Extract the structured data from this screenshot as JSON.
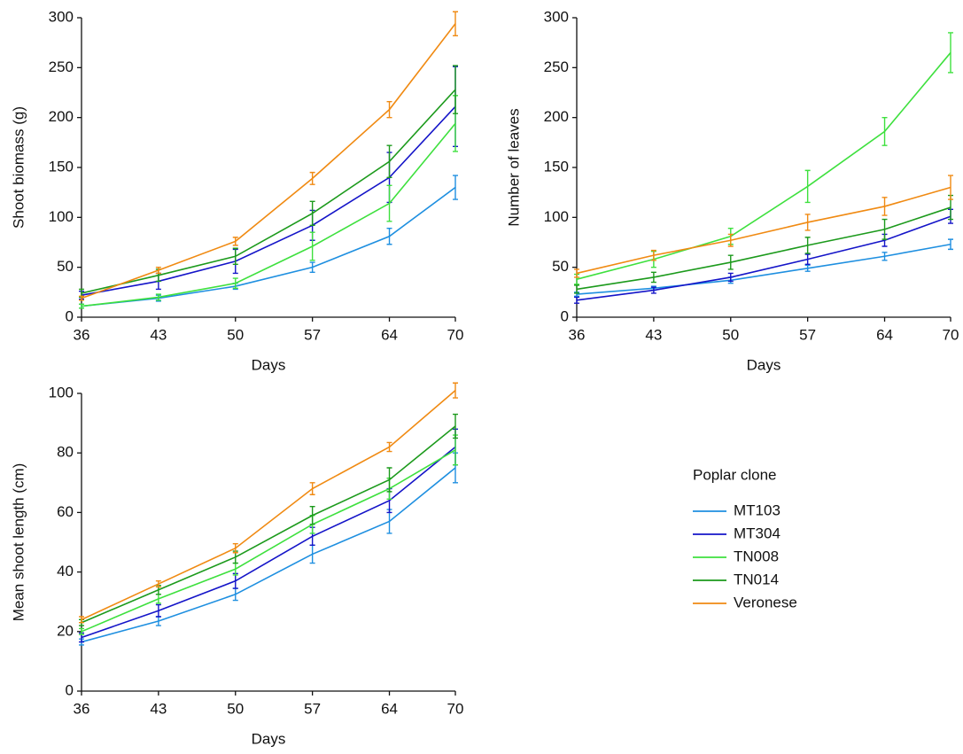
{
  "chart_data": [
    {
      "type": "line",
      "xlabel": "Days",
      "ylabel": "Shoot biomass (g)",
      "x": [
        36,
        43,
        50,
        57,
        64,
        70
      ],
      "xlim": [
        36,
        70
      ],
      "xticks": [
        36,
        43,
        50,
        57,
        64,
        70
      ],
      "ylim": [
        0,
        300
      ],
      "yticks": [
        0,
        50,
        100,
        150,
        200,
        250,
        300
      ],
      "series": [
        {
          "color": "#1e8fe0",
          "values": [
            11,
            19,
            31,
            50,
            81,
            130
          ],
          "errors": [
            2,
            3,
            3,
            5,
            8,
            12
          ]
        },
        {
          "color": "#1414c8",
          "values": [
            22,
            36,
            56,
            92,
            140,
            211
          ],
          "errors": [
            4,
            8,
            12,
            15,
            25,
            40
          ]
        },
        {
          "color": "#3ee03e",
          "values": [
            11,
            20,
            34,
            71,
            114,
            194
          ],
          "errors": [
            2,
            3,
            5,
            14,
            18,
            28
          ]
        },
        {
          "color": "#1c9a1c",
          "values": [
            24,
            42,
            61,
            104,
            156,
            228
          ],
          "errors": [
            4,
            6,
            8,
            12,
            16,
            24
          ]
        },
        {
          "color": "#f08a12",
          "values": [
            19,
            47,
            76,
            139,
            208,
            294
          ],
          "errors": [
            2,
            3,
            4,
            6,
            8,
            12
          ]
        }
      ]
    },
    {
      "type": "line",
      "xlabel": "Days",
      "ylabel": "Number of leaves",
      "x": [
        36,
        43,
        50,
        57,
        64,
        70
      ],
      "xlim": [
        36,
        70
      ],
      "xticks": [
        36,
        43,
        50,
        57,
        64,
        70
      ],
      "ylim": [
        0,
        300
      ],
      "yticks": [
        0,
        50,
        100,
        150,
        200,
        250,
        300
      ],
      "series": [
        {
          "color": "#1e8fe0",
          "values": [
            23,
            29,
            37,
            49,
            61,
            73
          ],
          "errors": [
            2,
            2,
            3,
            3,
            4,
            5
          ]
        },
        {
          "color": "#1414c8",
          "values": [
            17,
            27,
            40,
            58,
            77,
            101
          ],
          "errors": [
            3,
            3,
            4,
            5,
            6,
            7
          ]
        },
        {
          "color": "#3ee03e",
          "values": [
            38,
            58,
            81,
            131,
            186,
            265
          ],
          "errors": [
            5,
            8,
            8,
            16,
            14,
            20
          ]
        },
        {
          "color": "#1c9a1c",
          "values": [
            28,
            40,
            55,
            72,
            88,
            110
          ],
          "errors": [
            4,
            5,
            7,
            8,
            10,
            12
          ]
        },
        {
          "color": "#f08a12",
          "values": [
            44,
            62,
            77,
            95,
            111,
            130
          ],
          "errors": [
            4,
            5,
            6,
            8,
            9,
            12
          ]
        }
      ]
    },
    {
      "type": "line",
      "xlabel": "Days",
      "ylabel": "Mean shoot length (cm)",
      "x": [
        36,
        43,
        50,
        57,
        64,
        70
      ],
      "xlim": [
        36,
        70
      ],
      "xticks": [
        36,
        43,
        50,
        57,
        64,
        70
      ],
      "ylim": [
        0,
        100
      ],
      "yticks": [
        0,
        20,
        40,
        60,
        80,
        100
      ],
      "legend_title": "Poplar clone",
      "series": [
        {
          "name": "MT103",
          "color": "#1e8fe0",
          "values": [
            16.5,
            23.5,
            32.5,
            46,
            57,
            75
          ],
          "errors": [
            1,
            1.5,
            2,
            3,
            4,
            5
          ]
        },
        {
          "name": "MT304",
          "color": "#1414c8",
          "values": [
            18,
            27,
            37,
            52,
            64,
            82
          ],
          "errors": [
            1.5,
            2,
            2.5,
            3,
            4,
            6
          ]
        },
        {
          "name": "TN008",
          "color": "#3ee03e",
          "values": [
            20,
            31,
            41,
            56,
            68,
            81
          ],
          "errors": [
            1,
            1.5,
            2,
            3,
            3.5,
            5
          ]
        },
        {
          "name": "TN014",
          "color": "#1c9a1c",
          "values": [
            23,
            34,
            45,
            59,
            71,
            89
          ],
          "errors": [
            1,
            1.5,
            2,
            3,
            4,
            4
          ]
        },
        {
          "name": "Veronese",
          "color": "#f08a12",
          "values": [
            24,
            36,
            48,
            68,
            82,
            101
          ],
          "errors": [
            1,
            1,
            1.5,
            2,
            1.5,
            2.5
          ]
        }
      ]
    }
  ]
}
